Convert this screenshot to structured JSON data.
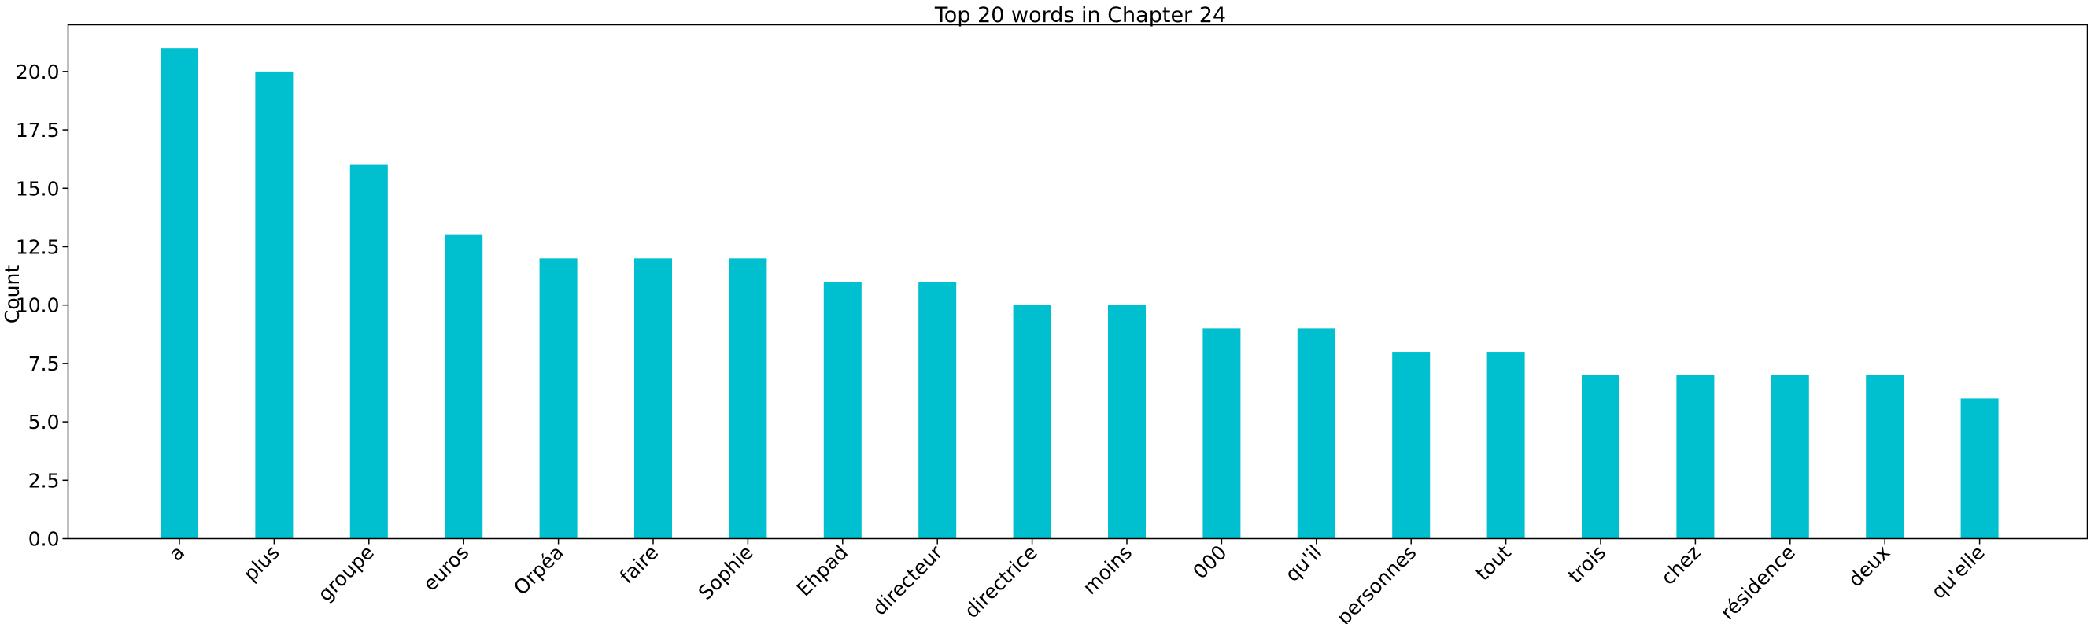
{
  "chart_data": {
    "type": "bar",
    "title": "Top 20 words in Chapter 24",
    "xlabel": "",
    "ylabel": "Count",
    "ylim": [
      0,
      22
    ],
    "yticks": [
      "0.0",
      "2.5",
      "5.0",
      "7.5",
      "10.0",
      "12.5",
      "15.0",
      "17.5",
      "20.0"
    ],
    "ytick_values": [
      0,
      2.5,
      5,
      7.5,
      10,
      12.5,
      15,
      17.5,
      20
    ],
    "categories": [
      "a",
      "plus",
      "groupe",
      "euros",
      "Orpéa",
      "faire",
      "Sophie",
      "Ehpad",
      "directeur",
      "directrice",
      "moins",
      "000",
      "qu'il",
      "personnes",
      "tout",
      "trois",
      "chez",
      "résidence",
      "deux",
      "qu'elle"
    ],
    "values": [
      21,
      20,
      16,
      13,
      12,
      12,
      12,
      11,
      11,
      10,
      10,
      9,
      9,
      8,
      8,
      7,
      7,
      7,
      7,
      6
    ],
    "bar_color": "#00bfcf",
    "grid": false,
    "legend": "none"
  }
}
